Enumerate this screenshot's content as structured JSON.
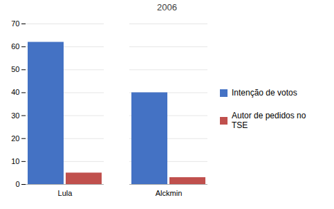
{
  "chart_data": {
    "type": "bar",
    "title": "2006",
    "categories": [
      "Lula",
      "Alckmin"
    ],
    "series": [
      {
        "name": "Intenção de votos",
        "color": "#4472C4",
        "values": [
          62,
          40
        ]
      },
      {
        "name": "Autor de pedidos no\nTSE",
        "color": "#C0504D",
        "values": [
          5,
          3
        ]
      }
    ],
    "ylim": [
      0,
      70
    ],
    "yticks": [
      0,
      10,
      20,
      30,
      40,
      50,
      60,
      70
    ],
    "grid": true,
    "legend": "right"
  }
}
